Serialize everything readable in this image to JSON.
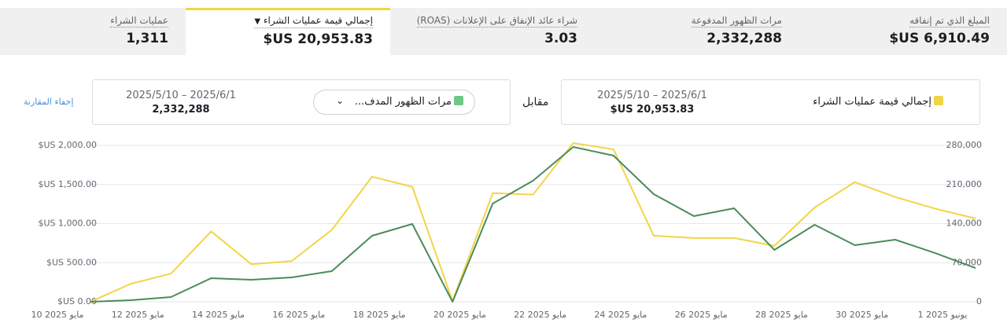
{
  "metrics": [
    {
      "label": "المبلغ الذي تم إنفاقه",
      "value": "$US 6,910.49"
    },
    {
      "label": "مرات الظهور المدفوعة",
      "value": "2,332,288"
    },
    {
      "label": "شراء عائد الإنفاق على الإعلانات (ROAS)",
      "value": "3.03"
    },
    {
      "label": "إجمالي قيمة عمليات الشراء",
      "value": "$US 20,953.83"
    },
    {
      "label": "عمليات الشراء",
      "value": "1,311"
    }
  ],
  "comparison": {
    "primary": {
      "metric": "إجمالي قيمة عمليات الشراء",
      "date_range": "2025/5/10 – 2025/6/1",
      "total": "$US 20,953.83"
    },
    "versus": "مقابل",
    "secondary": {
      "metric": "مرات الظهور المدف...",
      "date_range": "2025/5/10 – 2025/6/1",
      "total": "2,332,288"
    },
    "hide_link": "إخفاء المقارنة"
  },
  "chart_data": {
    "type": "line",
    "categories": [
      "10 مايو 2025",
      null,
      "12 مايو 2025",
      null,
      "14 مايو 2025",
      null,
      "16 مايو 2025",
      null,
      "18 مايو 2025",
      null,
      "20 مايو 2025",
      null,
      "22 مايو 2025",
      null,
      "24 مايو 2025",
      null,
      "26 مايو 2025",
      null,
      "28 مايو 2025",
      null,
      "30 مايو 2025",
      null,
      "1 يونيو 2025"
    ],
    "series": [
      {
        "name": "إجمالي قيمة عمليات الشراء",
        "color": "#f2d545",
        "values": [
          0,
          230,
          360,
          900,
          480,
          520,
          920,
          1600,
          1470,
          10,
          1390,
          1370,
          2030,
          1950,
          845,
          815,
          815,
          715,
          1205,
          1530,
          1340,
          1190,
          1065
        ]
      },
      {
        "name": "مرات الظهور المدفوعة",
        "color": "#4b8b5a",
        "axis": "y2",
        "values": [
          0,
          2800,
          8400,
          42200,
          39400,
          43600,
          54900,
          118200,
          139300,
          0,
          175900,
          216700,
          277200,
          261700,
          192800,
          153400,
          167400,
          92900,
          137900,
          101300,
          111200,
          87200,
          60500
        ]
      }
    ],
    "ylim": [
      0,
      2000
    ],
    "yticks": [
      {
        "value": 0,
        "label": "$US 0.00"
      },
      {
        "value": 500,
        "label": "$US 500.00"
      },
      {
        "value": 1000,
        "label": "$US 1,000.00"
      },
      {
        "value": 1500,
        "label": "$US 1,500.00"
      },
      {
        "value": 2000,
        "label": "$US 2,000.00"
      }
    ],
    "y2lim": [
      0,
      280000
    ],
    "y2ticks": [
      0,
      {
        "value": 70000,
        "label": "70,000"
      },
      {
        "value": 140000,
        "label": "140,000"
      },
      {
        "value": 210000,
        "label": "210,000"
      },
      {
        "value": 280000,
        "label": "280,000"
      }
    ],
    "grid": true
  }
}
